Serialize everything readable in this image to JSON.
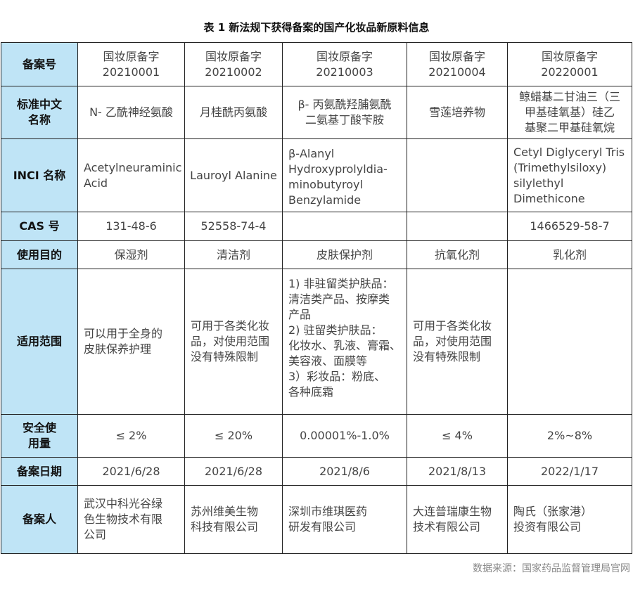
{
  "title": "表 1 新法规下获得备案的国产化妆品新原料信息",
  "rows": [
    {
      "label": "备案号",
      "cells": [
        "国妆原备字\n20210001",
        "国妆原备字\n20210002",
        "国妆原备字\n20210003",
        "国妆原备字\n20210004",
        "国妆原备字\n20220001"
      ]
    },
    {
      "label": "标准中文\n名称",
      "cells": [
        "N- 乙酰神经氨酸",
        "月桂酰丙氨酸",
        "β- 丙氨酰羟脯氨酰\n二氨基丁酸苄胺",
        "雪莲培养物",
        "鲸蜡基二甘油三（三\n甲基硅氧基）硅乙\n基聚二甲基硅氧烷"
      ]
    },
    {
      "label": "INCI 名称",
      "cells": [
        "Acetylneuraminic\nAcid",
        "Lauroyl Alanine",
        "β-Alanyl\nHydroxyprolyldia-\nminobutyroyl\nBenzylamide",
        "",
        "Cetyl Diglyceryl Tris\n(Trimethylsiloxy)\nsilylethyl\nDimethicone"
      ]
    },
    {
      "label": "CAS 号",
      "cells": [
        "131-48-6",
        "52558-74-4",
        "",
        "",
        "1466529-58-7"
      ]
    },
    {
      "label": "使用目的",
      "cells": [
        "保湿剂",
        "清洁剂",
        "皮肤保护剂",
        "抗氧化剂",
        "乳化剂"
      ]
    },
    {
      "label": "适用范围",
      "cells": [
        "可以用于全身的\n皮肤保养护理",
        "可用于各类化妆\n品，对使用范围\n没有特殊限制",
        "1) 非驻留类护肤品：\n清洁类产品、按摩类\n产品\n2) 驻留类护肤品：\n化妆水、乳液、膏霜、\n美容液、面膜等\n3）彩妆品：粉底、\n各种底霜",
        "可用于各类化妆\n品，对使用范围\n没有特殊限制",
        ""
      ]
    },
    {
      "label": "安全使\n用量",
      "cells": [
        "≤ 2%",
        "≤ 20%",
        "0.00001%-1.0%",
        "≤ 4%",
        "2%~8%"
      ]
    },
    {
      "label": "备案日期",
      "cells": [
        "2021/6/28",
        "2021/6/28",
        "2021/8/6",
        "2021/8/13",
        "2022/1/17"
      ]
    },
    {
      "label": "备案人",
      "cells": [
        "武汉中科光谷绿\n色生物技术有限\n公司",
        "苏州维美生物\n科技有限公司",
        "深圳市维琪医药\n研发有限公司",
        "大连普瑞康生物\n技术有限公司",
        "陶氏（张家港）\n投资有限公司"
      ]
    }
  ],
  "source": "数据来源：国家药品监督管理局官网",
  "colors": {
    "header_bg": "#bfe4f6",
    "border": "#222222"
  }
}
